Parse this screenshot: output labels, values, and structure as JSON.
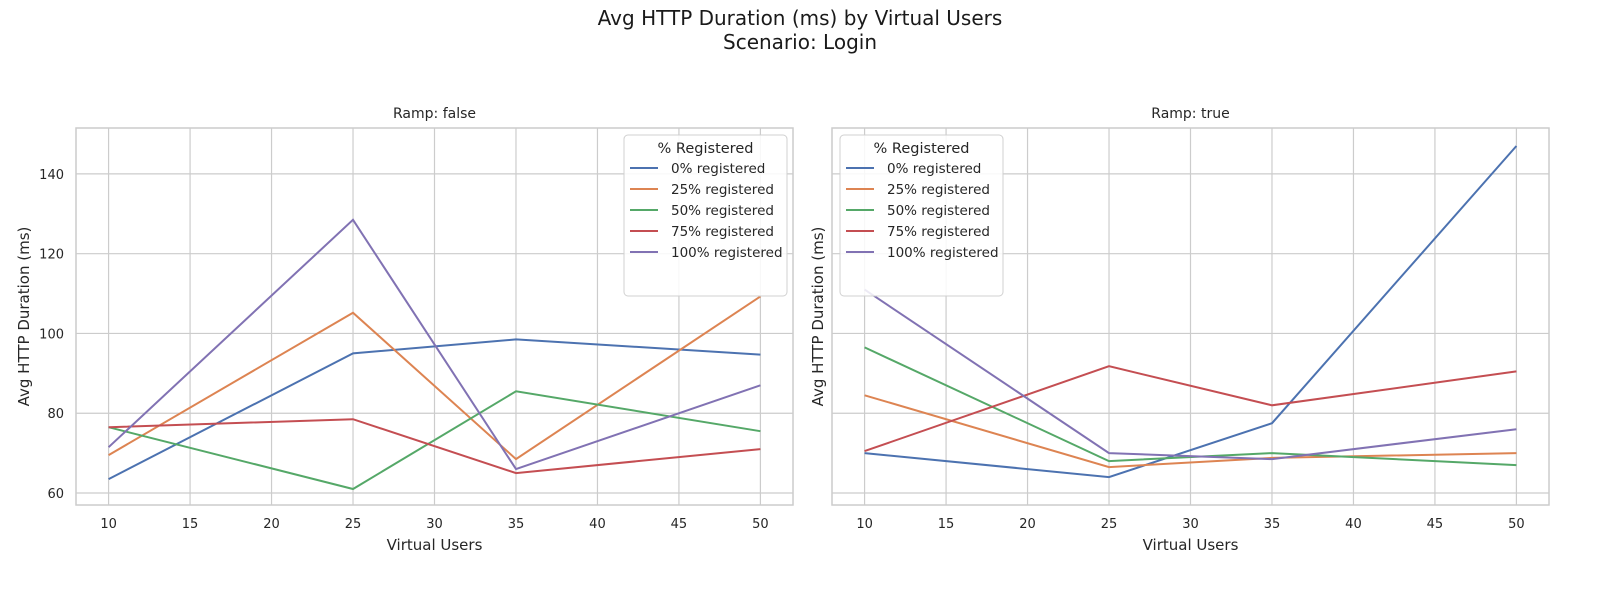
{
  "figure": {
    "title_line1": "Avg HTTP Duration (ms) by Virtual Users",
    "title_line2": "Scenario: Login"
  },
  "chart_data": [
    {
      "type": "line",
      "title": "Ramp: false",
      "xlabel": "Virtual Users",
      "ylabel": "Avg HTTP Duration (ms)",
      "x": [
        10,
        25,
        35,
        50
      ],
      "xlim": [
        8,
        52
      ],
      "ylim": [
        57,
        151.5
      ],
      "xticks": [
        10,
        15,
        20,
        25,
        30,
        35,
        40,
        45,
        50
      ],
      "yticks": [
        60,
        80,
        100,
        120,
        140
      ],
      "grid": true,
      "legend": {
        "title": "% Registered",
        "placement": "top-right"
      },
      "series": [
        {
          "name": "0% registered",
          "color": "#4c72b0",
          "values": [
            63.5,
            95.0,
            98.5,
            94.7
          ]
        },
        {
          "name": "25% registered",
          "color": "#dd8452",
          "values": [
            69.5,
            105.2,
            68.5,
            109.3
          ]
        },
        {
          "name": "50% registered",
          "color": "#55a868",
          "values": [
            76.5,
            61.0,
            85.5,
            75.5
          ]
        },
        {
          "name": "75% registered",
          "color": "#c44e52",
          "values": [
            76.5,
            78.5,
            65.0,
            71.0
          ]
        },
        {
          "name": "100% registered",
          "color": "#8172b3",
          "values": [
            71.5,
            128.5,
            66.0,
            87.0
          ]
        }
      ]
    },
    {
      "type": "line",
      "title": "Ramp: true",
      "xlabel": "Virtual Users",
      "ylabel": "Avg HTTP Duration (ms)",
      "x": [
        10,
        25,
        35,
        50
      ],
      "xlim": [
        8,
        52
      ],
      "ylim": [
        57,
        151.5
      ],
      "xticks": [
        10,
        15,
        20,
        25,
        30,
        35,
        40,
        45,
        50
      ],
      "yticks": [
        60,
        80,
        100,
        120,
        140
      ],
      "grid": true,
      "legend": {
        "title": "% Registered",
        "placement": "top-left"
      },
      "series": [
        {
          "name": "0% registered",
          "color": "#4c72b0",
          "values": [
            70.0,
            64.0,
            77.5,
            147.0
          ]
        },
        {
          "name": "25% registered",
          "color": "#dd8452",
          "values": [
            84.5,
            66.5,
            68.8,
            70.0
          ]
        },
        {
          "name": "50% registered",
          "color": "#55a868",
          "values": [
            96.5,
            68.0,
            70.0,
            67.0
          ]
        },
        {
          "name": "75% registered",
          "color": "#c44e52",
          "values": [
            70.5,
            91.8,
            82.0,
            90.5
          ]
        },
        {
          "name": "100% registered",
          "color": "#8172b3",
          "values": [
            111.0,
            70.0,
            68.5,
            76.0
          ]
        }
      ]
    }
  ]
}
